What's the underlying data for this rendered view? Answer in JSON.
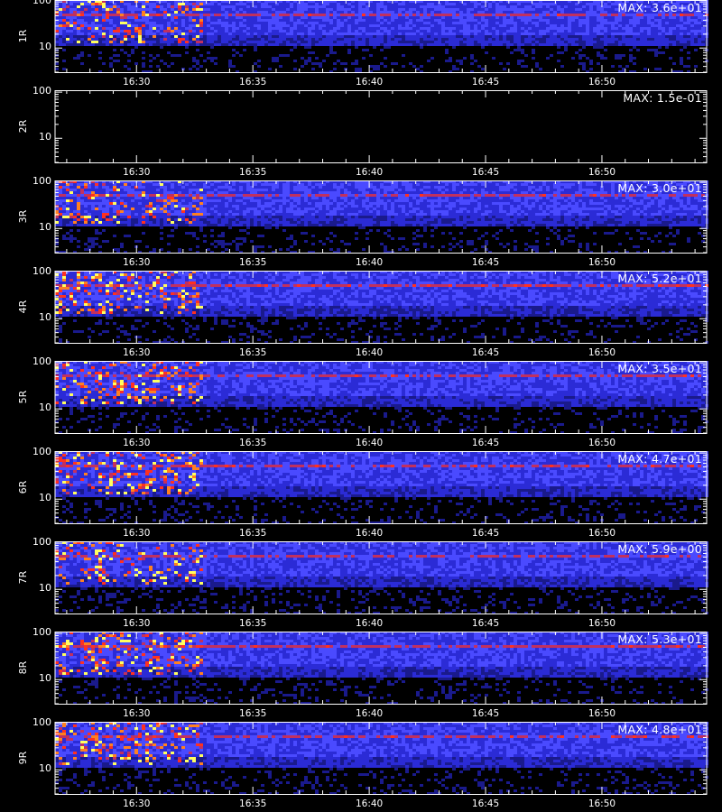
{
  "chart_data": {
    "type": "heatmap",
    "description_units": "stacked spectrograms, log-scale y axis (10-100+), time x axis",
    "x_range": [
      "16:26:30",
      "16:54:30"
    ],
    "x_ticks": [
      "16:30",
      "16:35",
      "16:40",
      "16:45",
      "16:50"
    ],
    "y_ticks": [
      "100",
      "10"
    ],
    "y_scale": "log",
    "y_range": [
      3,
      110
    ],
    "colormap": [
      "#000000",
      "#1a1a8c",
      "#2b2bd6",
      "#4a4aff",
      "#c03060",
      "#ff3020",
      "#ff8020",
      "#ffff60",
      "#ffffff"
    ],
    "panels": [
      {
        "label": "1R",
        "max_label": "MAX: 3.6e+01",
        "intensity": 0.55
      },
      {
        "label": "2R",
        "max_label": "MAX: 1.5e-01",
        "intensity": 0.0
      },
      {
        "label": "3R",
        "max_label": "MAX: 3.0e+01",
        "intensity": 0.55
      },
      {
        "label": "4R",
        "max_label": "MAX: 5.2e+01",
        "intensity": 0.75
      },
      {
        "label": "5R",
        "max_label": "MAX: 3.5e+01",
        "intensity": 0.6
      },
      {
        "label": "6R",
        "max_label": "MAX: 4.7e+01",
        "intensity": 0.65
      },
      {
        "label": "7R",
        "max_label": "MAX: 5.9e+00",
        "intensity": 0.45
      },
      {
        "label": "8R",
        "max_label": "MAX: 5.3e+01",
        "intensity": 0.7
      },
      {
        "label": "9R",
        "max_label": "MAX: 4.8e+01",
        "intensity": 0.65
      }
    ]
  }
}
